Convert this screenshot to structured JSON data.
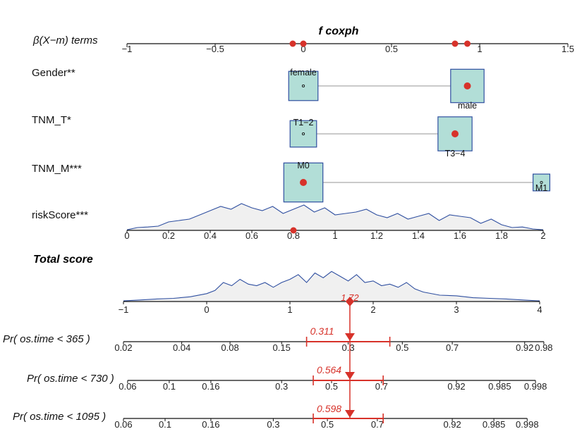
{
  "chart_data": {
    "type": "nomogram",
    "title": "f coxph",
    "colors": {
      "red": "#d7322a",
      "box_fill": "#b2ded7",
      "box_stroke": "#2f4fa0",
      "density_line": "#2f4fa0",
      "density_fill": "#f0f0f0"
    },
    "beta_axis": {
      "label": "β(X−m) terms",
      "range": [
        -1,
        1.5
      ],
      "ticks": [
        -1,
        -0.5,
        0,
        0.5,
        1,
        1.5
      ],
      "tick_labels": [
        "−1",
        "−0.5",
        "0",
        "0.5",
        "1",
        "1.5"
      ],
      "red_points": [
        -0.06,
        0,
        0.86,
        0.93
      ]
    },
    "variables": [
      {
        "label": "Gender**",
        "categories": [
          {
            "name": "female",
            "beta": 0,
            "weight": 0.45
          },
          {
            "name": "male",
            "beta": 0.93,
            "weight": 0.62
          }
        ],
        "selected": "male"
      },
      {
        "label": "TNM_T*",
        "categories": [
          {
            "name": "T1−2",
            "beta": 0,
            "weight": 0.35
          },
          {
            "name": "T3−4",
            "beta": 0.86,
            "weight": 0.65
          }
        ],
        "selected": "T3−4"
      },
      {
        "label": "TNM_M***",
        "categories": [
          {
            "name": "M0",
            "beta": 0,
            "weight": 0.9
          },
          {
            "name": "M1",
            "beta": 1.35,
            "weight": 0.1
          }
        ],
        "selected": "M0"
      }
    ],
    "risk_score": {
      "label": "riskScore***",
      "ticks": [
        0,
        0.2,
        0.4,
        0.6,
        0.8,
        1,
        1.2,
        1.4,
        1.6,
        1.8,
        2
      ],
      "tick_labels": [
        "0",
        "0.2",
        "0.4",
        "0.6",
        "0.8",
        "1",
        "1.2",
        "1.4",
        "1.6",
        "1.8",
        "2"
      ],
      "selected": 0.8,
      "density_x": [
        0,
        0.05,
        0.1,
        0.15,
        0.2,
        0.25,
        0.3,
        0.35,
        0.4,
        0.45,
        0.5,
        0.55,
        0.6,
        0.65,
        0.7,
        0.75,
        0.8,
        0.85,
        0.9,
        0.95,
        1,
        1.05,
        1.1,
        1.15,
        1.2,
        1.25,
        1.3,
        1.35,
        1.4,
        1.45,
        1.5,
        1.55,
        1.6,
        1.65,
        1.7,
        1.75,
        1.8,
        1.85,
        1.9,
        1.95,
        2
      ],
      "density_y": [
        0.02,
        0.1,
        0.12,
        0.15,
        0.3,
        0.35,
        0.4,
        0.55,
        0.7,
        0.85,
        0.75,
        0.95,
        0.8,
        0.7,
        0.85,
        0.6,
        0.75,
        0.9,
        0.65,
        0.8,
        0.55,
        0.6,
        0.65,
        0.75,
        0.55,
        0.45,
        0.6,
        0.4,
        0.5,
        0.6,
        0.35,
        0.55,
        0.5,
        0.45,
        0.25,
        0.4,
        0.2,
        0.1,
        0.12,
        0.05,
        0.02
      ]
    },
    "total_score": {
      "label": "Total score",
      "ticks": [
        -1,
        0,
        1,
        2,
        3,
        4
      ],
      "tick_labels": [
        "−1",
        "0",
        "1",
        "2",
        "3",
        "4"
      ],
      "value": 1.72,
      "value_label": "1.72",
      "density_x": [
        -1,
        -0.8,
        -0.6,
        -0.4,
        -0.2,
        0,
        0.1,
        0.2,
        0.3,
        0.4,
        0.5,
        0.6,
        0.7,
        0.8,
        0.9,
        1,
        1.1,
        1.2,
        1.3,
        1.4,
        1.5,
        1.6,
        1.7,
        1.8,
        1.9,
        2,
        2.1,
        2.2,
        2.3,
        2.4,
        2.5,
        2.6,
        2.8,
        3,
        3.2,
        3.4,
        3.6,
        3.8,
        4
      ],
      "density_y": [
        0.02,
        0.05,
        0.08,
        0.1,
        0.15,
        0.25,
        0.35,
        0.6,
        0.5,
        0.7,
        0.55,
        0.5,
        0.6,
        0.45,
        0.6,
        0.7,
        0.85,
        0.6,
        0.9,
        0.75,
        0.95,
        0.8,
        0.65,
        0.85,
        0.6,
        0.65,
        0.5,
        0.55,
        0.45,
        0.6,
        0.4,
        0.3,
        0.2,
        0.18,
        0.12,
        0.1,
        0.08,
        0.05,
        0.02
      ]
    },
    "probabilities": [
      {
        "label": "Pr( os.time < 365 )",
        "value": 0.311,
        "value_label": "0.311",
        "tick_labels": [
          "0.02",
          "0.04",
          "0.08",
          "0.15",
          "0.3",
          "0.5",
          "0.7",
          "0.92",
          "0.98"
        ],
        "tick_scores": [
          -1.0,
          -0.3,
          0.28,
          0.9,
          1.7,
          2.35,
          2.95,
          3.82,
          4.05
        ],
        "ci_scores": [
          1.2,
          2.2
        ]
      },
      {
        "label": "Pr( os.time < 730 )",
        "value": 0.564,
        "value_label": "0.564",
        "tick_labels": [
          "0.06",
          "0.1",
          "0.16",
          "0.3",
          "0.5",
          "0.7",
          "0.92",
          "0.985",
          "0.998"
        ],
        "tick_scores": [
          -0.95,
          -0.45,
          0.05,
          0.9,
          1.5,
          2.1,
          3.0,
          3.52,
          3.95
        ],
        "ci_scores": [
          1.28,
          2.12
        ]
      },
      {
        "label": "Pr( os.time < 1095 )",
        "value": 0.598,
        "value_label": "0.598",
        "tick_labels": [
          "0.06",
          "0.1",
          "0.16",
          "0.3",
          "0.5",
          "0.7",
          "0.92",
          "0.985",
          "0.998"
        ],
        "tick_scores": [
          -1.0,
          -0.5,
          0.05,
          0.8,
          1.45,
          2.05,
          2.95,
          3.45,
          3.85
        ],
        "ci_scores": [
          1.28,
          2.12
        ]
      }
    ]
  }
}
